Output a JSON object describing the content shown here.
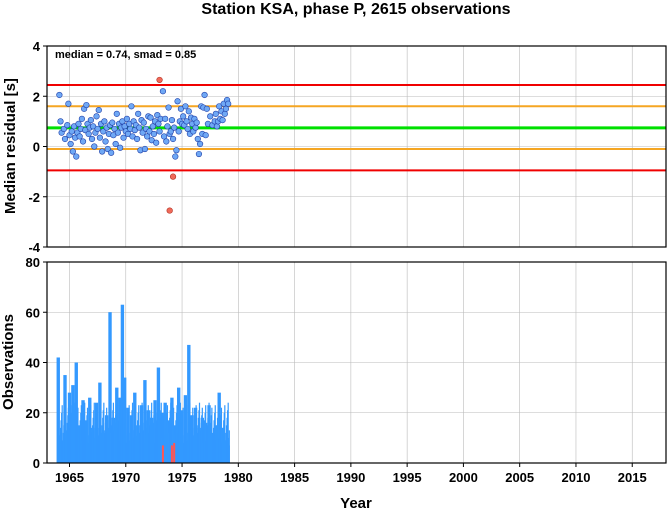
{
  "title": "Station KSA, phase P, 2615 observations",
  "annotation": "median = 0.74, smad = 0.85",
  "colors": {
    "median_line": "#00e000",
    "smad_line": "#f5a623",
    "limit_line": "#f00000",
    "point_fill": "#6fa8f5",
    "point_stroke": "#1f3fa8",
    "outlier_fill": "#f06a5a",
    "outlier_stroke": "#b03020",
    "bar": "#3399ff",
    "bar_highlight": "#ff5555",
    "grid": "#bbbbbb"
  },
  "chart_data": [
    {
      "type": "scatter",
      "ylabel": "Median residual [s]",
      "xlim": [
        1963,
        2018
      ],
      "ylim": [
        -4,
        4
      ],
      "xticks": [
        1965,
        1970,
        1975,
        1980,
        1985,
        1990,
        1995,
        2000,
        2005,
        2010,
        2015
      ],
      "yticks": [
        -4,
        -2,
        0,
        2,
        4
      ],
      "grid": true,
      "median": 0.74,
      "smad": 0.85,
      "hlines": [
        {
          "y": 2.45,
          "kind": "limit"
        },
        {
          "y": 1.6,
          "kind": "smad"
        },
        {
          "y": 0.74,
          "kind": "median"
        },
        {
          "y": -0.1,
          "kind": "smad"
        },
        {
          "y": -0.95,
          "kind": "limit"
        }
      ],
      "points": [
        [
          1964.1,
          2.05
        ],
        [
          1964.2,
          1.0
        ],
        [
          1964.3,
          0.55
        ],
        [
          1964.5,
          0.7
        ],
        [
          1964.6,
          0.3
        ],
        [
          1964.8,
          0.85
        ],
        [
          1964.9,
          1.7
        ],
        [
          1965.0,
          0.45
        ],
        [
          1965.1,
          0.1
        ],
        [
          1965.2,
          0.6
        ],
        [
          1965.3,
          -0.2
        ],
        [
          1965.4,
          0.8
        ],
        [
          1965.5,
          0.35
        ],
        [
          1965.6,
          -0.4
        ],
        [
          1965.7,
          0.55
        ],
        [
          1965.8,
          0.9
        ],
        [
          1965.9,
          0.4
        ],
        [
          1966.0,
          0.7
        ],
        [
          1966.1,
          1.1
        ],
        [
          1966.2,
          0.2
        ],
        [
          1966.3,
          1.5
        ],
        [
          1966.4,
          0.65
        ],
        [
          1966.5,
          1.65
        ],
        [
          1966.6,
          0.9
        ],
        [
          1966.7,
          0.5
        ],
        [
          1966.8,
          0.75
        ],
        [
          1966.9,
          1.05
        ],
        [
          1967.0,
          0.3
        ],
        [
          1967.1,
          0.8
        ],
        [
          1967.2,
          0.0
        ],
        [
          1967.3,
          0.55
        ],
        [
          1967.4,
          1.2
        ],
        [
          1967.5,
          0.7
        ],
        [
          1967.6,
          1.45
        ],
        [
          1967.7,
          0.35
        ],
        [
          1967.8,
          0.9
        ],
        [
          1967.9,
          -0.2
        ],
        [
          1968.0,
          0.6
        ],
        [
          1968.1,
          1.0
        ],
        [
          1968.2,
          0.2
        ],
        [
          1968.3,
          0.75
        ],
        [
          1968.4,
          -0.1
        ],
        [
          1968.5,
          0.5
        ],
        [
          1968.6,
          0.85
        ],
        [
          1968.7,
          -0.25
        ],
        [
          1968.8,
          0.95
        ],
        [
          1968.9,
          0.45
        ],
        [
          1969.0,
          0.7
        ],
        [
          1969.1,
          0.1
        ],
        [
          1969.2,
          1.3
        ],
        [
          1969.3,
          0.55
        ],
        [
          1969.4,
          0.9
        ],
        [
          1969.5,
          -0.05
        ],
        [
          1969.6,
          0.75
        ],
        [
          1969.7,
          1.0
        ],
        [
          1969.8,
          0.35
        ],
        [
          1969.9,
          0.8
        ],
        [
          1970.0,
          0.6
        ],
        [
          1970.1,
          1.1
        ],
        [
          1970.2,
          0.5
        ],
        [
          1970.3,
          0.9
        ],
        [
          1970.4,
          0.7
        ],
        [
          1970.5,
          1.6
        ],
        [
          1970.6,
          0.4
        ],
        [
          1970.7,
          1.0
        ],
        [
          1970.8,
          0.65
        ],
        [
          1970.9,
          0.85
        ],
        [
          1971.0,
          0.3
        ],
        [
          1971.1,
          1.3
        ],
        [
          1971.2,
          0.75
        ],
        [
          1971.3,
          -0.15
        ],
        [
          1971.4,
          1.05
        ],
        [
          1971.5,
          0.55
        ],
        [
          1971.6,
          0.95
        ],
        [
          1971.7,
          -0.1
        ],
        [
          1971.8,
          0.7
        ],
        [
          1971.9,
          0.4
        ],
        [
          1972.0,
          1.2
        ],
        [
          1972.1,
          0.6
        ],
        [
          1972.2,
          1.15
        ],
        [
          1972.3,
          0.25
        ],
        [
          1972.4,
          0.8
        ],
        [
          1972.5,
          0.5
        ],
        [
          1972.6,
          1.0
        ],
        [
          1972.7,
          0.15
        ],
        [
          1972.8,
          1.25
        ],
        [
          1972.9,
          0.9
        ],
        [
          1973.0,
          0.6
        ],
        [
          1973.1,
          1.1
        ],
        [
          1973.3,
          2.2
        ],
        [
          1973.4,
          0.4
        ],
        [
          1973.5,
          1.1
        ],
        [
          1973.6,
          0.2
        ],
        [
          1973.7,
          0.8
        ],
        [
          1973.8,
          1.55
        ],
        [
          1973.9,
          0.5
        ],
        [
          1974.0,
          0.6
        ],
        [
          1974.1,
          1.05
        ],
        [
          1974.2,
          0.3
        ],
        [
          1974.3,
          0.75
        ],
        [
          1974.4,
          -0.4
        ],
        [
          1974.5,
          -0.15
        ],
        [
          1974.6,
          1.8
        ],
        [
          1974.7,
          0.6
        ],
        [
          1974.8,
          1.0
        ],
        [
          1974.9,
          1.5
        ],
        [
          1975.0,
          0.9
        ],
        [
          1975.1,
          1.2
        ],
        [
          1975.2,
          0.85
        ],
        [
          1975.3,
          1.6
        ],
        [
          1975.4,
          1.0
        ],
        [
          1975.5,
          0.7
        ],
        [
          1975.6,
          1.4
        ],
        [
          1975.7,
          0.5
        ],
        [
          1975.8,
          1.15
        ],
        [
          1975.9,
          0.9
        ],
        [
          1976.0,
          0.6
        ],
        [
          1976.1,
          1.1
        ],
        [
          1976.2,
          0.75
        ],
        [
          1976.3,
          0.95
        ],
        [
          1976.4,
          0.3
        ],
        [
          1976.5,
          -0.3
        ],
        [
          1976.6,
          0.1
        ],
        [
          1976.7,
          1.6
        ],
        [
          1976.8,
          0.5
        ],
        [
          1976.9,
          1.55
        ],
        [
          1977.0,
          2.05
        ],
        [
          1977.1,
          0.45
        ],
        [
          1977.2,
          1.5
        ],
        [
          1977.3,
          0.9
        ],
        [
          1977.5,
          1.2
        ],
        [
          1977.7,
          0.85
        ],
        [
          1977.9,
          1.0
        ],
        [
          1978.0,
          1.3
        ],
        [
          1978.1,
          0.8
        ],
        [
          1978.2,
          1.0
        ],
        [
          1978.3,
          1.6
        ],
        [
          1978.4,
          1.1
        ],
        [
          1978.5,
          1.4
        ],
        [
          1978.6,
          1.05
        ],
        [
          1978.7,
          1.7
        ],
        [
          1978.8,
          1.3
        ],
        [
          1978.9,
          1.5
        ],
        [
          1979.0,
          1.85
        ],
        [
          1979.1,
          1.7
        ]
      ],
      "outliers": [
        [
          1973.0,
          2.65
        ],
        [
          1974.2,
          -1.2
        ],
        [
          1973.9,
          -2.55
        ]
      ]
    },
    {
      "type": "bar",
      "xlabel": "Year",
      "ylabel": "Observations",
      "xlim": [
        1963,
        2018
      ],
      "ylim": [
        0,
        80
      ],
      "xticks": [
        1965,
        1970,
        1975,
        1980,
        1985,
        1990,
        1995,
        2000,
        2005,
        2010,
        2015
      ],
      "yticks": [
        0,
        20,
        40,
        60,
        80
      ],
      "grid": true,
      "bars": [
        [
          1964.0,
          42
        ],
        [
          1964.6,
          35
        ],
        [
          1965.0,
          28
        ],
        [
          1965.3,
          31
        ],
        [
          1965.6,
          40
        ],
        [
          1965.9,
          15
        ],
        [
          1966.2,
          25
        ],
        [
          1966.5,
          17
        ],
        [
          1966.8,
          26
        ],
        [
          1967.1,
          14
        ],
        [
          1967.4,
          24
        ],
        [
          1967.7,
          32
        ],
        [
          1968.0,
          12
        ],
        [
          1968.3,
          19
        ],
        [
          1968.6,
          60
        ],
        [
          1968.9,
          18
        ],
        [
          1969.2,
          30
        ],
        [
          1969.5,
          26
        ],
        [
          1969.7,
          63
        ],
        [
          1969.9,
          34
        ],
        [
          1970.2,
          22
        ],
        [
          1970.5,
          19
        ],
        [
          1970.8,
          28
        ],
        [
          1971.1,
          15
        ],
        [
          1971.4,
          23
        ],
        [
          1971.7,
          33
        ],
        [
          1972.0,
          21
        ],
        [
          1972.3,
          18
        ],
        [
          1972.6,
          25
        ],
        [
          1972.9,
          38
        ],
        [
          1973.2,
          20
        ],
        [
          1973.5,
          24
        ],
        [
          1973.8,
          17
        ],
        [
          1974.1,
          26
        ],
        [
          1974.4,
          15
        ],
        [
          1974.7,
          30
        ],
        [
          1975.0,
          21
        ],
        [
          1975.3,
          27
        ],
        [
          1975.6,
          47
        ],
        [
          1975.9,
          19
        ],
        [
          1976.2,
          22
        ],
        [
          1976.5,
          14
        ],
        [
          1976.8,
          18
        ],
        [
          1977.1,
          16
        ],
        [
          1977.4,
          23
        ],
        [
          1977.7,
          12
        ],
        [
          1978.0,
          15
        ],
        [
          1978.3,
          28
        ],
        [
          1978.6,
          14
        ],
        [
          1978.9,
          9
        ],
        [
          1979.1,
          7
        ]
      ],
      "highlight_bars": [
        [
          1973.3,
          7
        ],
        [
          1974.1,
          7
        ],
        [
          1974.3,
          8
        ]
      ]
    }
  ]
}
